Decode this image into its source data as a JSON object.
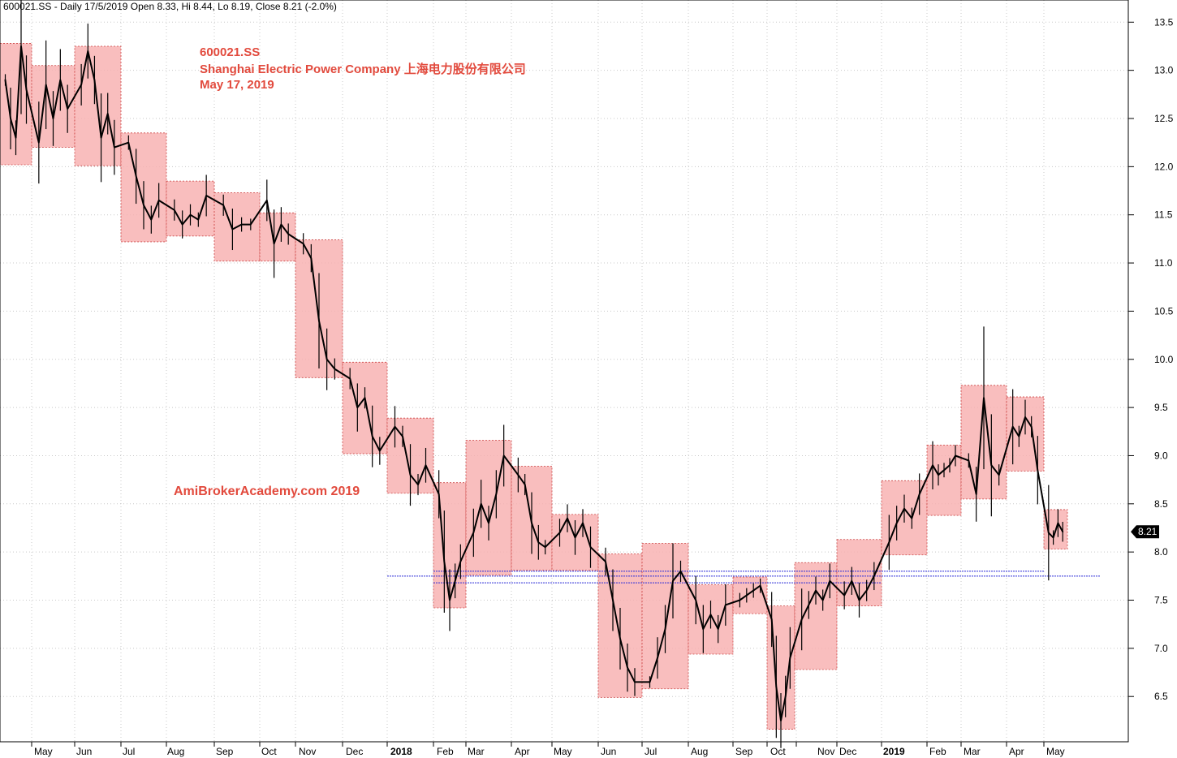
{
  "header": {
    "text": "600021.SS - Daily 17/5/2019 Open 8.33, Hi 8.44, Lo 8.19, Close 8.21 (-2.0%)"
  },
  "annotations": {
    "ticker": "600021.SS",
    "company": "Shanghai Electric Power Company  上海电力股份有限公司",
    "date": "May 17, 2019",
    "watermark": "AmiBrokerAcademy.com  2019"
  },
  "chart_data": {
    "type": "candlestick",
    "title": "600021.SS - Daily 17/5/2019 Open 8.33, Hi 8.44, Lo 8.19, Close 8.21 (-2.0%)",
    "y_axis": {
      "position": "right",
      "ylim": [
        6.03,
        13.73
      ],
      "ticks": [
        "6.5",
        "7.0",
        "7.5",
        "8.0",
        "8.5",
        "9.0",
        "9.5",
        "10.0",
        "10.5",
        "11.0",
        "11.5",
        "12.0",
        "12.5",
        "13.0",
        "13.5"
      ]
    },
    "x_axis": {
      "labels": [
        "May",
        "Jun",
        "Jul",
        "Aug",
        "Sep",
        "Oct",
        "Nov",
        "Dec",
        "2018",
        "Feb",
        "Mar",
        "Apr",
        "May",
        "Jun",
        "Jul",
        "Aug",
        "Sep",
        "Oct",
        "Nov",
        "Dec",
        "2019",
        "Feb",
        "Mar",
        "Apr",
        "May"
      ],
      "bold_labels": [
        "2018",
        "2019"
      ]
    },
    "last_close": {
      "label": "8.21",
      "value": 8.21
    },
    "monthly_ranges": [
      {
        "month": "Apr 2017",
        "low": 12.02,
        "high": 13.28
      },
      {
        "month": "May 2017",
        "low": 12.2,
        "high": 13.05
      },
      {
        "month": "Jun 2017",
        "low": 12.01,
        "high": 13.25
      },
      {
        "month": "Jul 2017",
        "low": 11.22,
        "high": 12.35
      },
      {
        "month": "Aug 2017",
        "low": 11.28,
        "high": 11.85
      },
      {
        "month": "Sep 2017",
        "low": 11.02,
        "high": 11.73
      },
      {
        "month": "Oct 2017",
        "low": 11.02,
        "high": 11.52
      },
      {
        "month": "Nov 2017",
        "low": 9.81,
        "high": 11.24
      },
      {
        "month": "Dec 2017",
        "low": 9.02,
        "high": 9.97
      },
      {
        "month": "Jan 2018",
        "low": 8.61,
        "high": 9.39
      },
      {
        "month": "Feb 2018",
        "low": 7.42,
        "high": 8.72
      },
      {
        "month": "Mar 2018",
        "low": 7.76,
        "high": 9.16
      },
      {
        "month": "Apr 2018",
        "low": 7.81,
        "high": 8.89
      },
      {
        "month": "May 2018",
        "low": 7.81,
        "high": 8.39
      },
      {
        "month": "Jun 2018",
        "low": 6.49,
        "high": 7.98
      },
      {
        "month": "Jul 2018",
        "low": 6.58,
        "high": 8.09
      },
      {
        "month": "Aug 2018",
        "low": 6.94,
        "high": 7.66
      },
      {
        "month": "Sep 2018",
        "low": 7.36,
        "high": 7.74
      },
      {
        "month": "Oct 2018",
        "low": 6.16,
        "high": 7.44
      },
      {
        "month": "Nov 2018",
        "low": 6.78,
        "high": 7.89
      },
      {
        "month": "Dec 2018",
        "low": 7.44,
        "high": 8.13
      },
      {
        "month": "Jan 2019",
        "low": 7.97,
        "high": 8.74
      },
      {
        "month": "Feb 2019",
        "low": 8.38,
        "high": 9.11
      },
      {
        "month": "Mar 2019",
        "low": 8.55,
        "high": 9.73
      },
      {
        "month": "Apr 2019",
        "low": 8.84,
        "high": 9.61
      },
      {
        "month": "May 2019",
        "low": 8.03,
        "high": 8.44
      }
    ],
    "horizontal_lines": [
      {
        "value": 7.8,
        "from": "Feb 2018",
        "to": "Apr 2019"
      },
      {
        "value": 7.75,
        "from": "Jan 2018",
        "to": "May 2019"
      },
      {
        "value": 7.68,
        "from": "Feb 2018",
        "to": "Dec 2018"
      }
    ],
    "daily_path": [
      [
        "Apr 2017",
        12.9
      ],
      [
        "Apr 2017",
        12.5
      ],
      [
        "Apr 2017",
        12.3
      ],
      [
        "Apr 2017",
        13.25
      ],
      [
        "Apr 2017",
        12.8
      ],
      [
        "May 2017",
        12.25
      ],
      [
        "May 2017",
        12.85
      ],
      [
        "May 2017",
        12.5
      ],
      [
        "May 2017",
        12.9
      ],
      [
        "May 2017",
        12.6
      ],
      [
        "Jun 2017",
        12.85
      ],
      [
        "Jun 2017",
        13.2
      ],
      [
        "Jun 2017",
        12.9
      ],
      [
        "Jun 2017",
        12.3
      ],
      [
        "Jun 2017",
        12.55
      ],
      [
        "Jun 2017",
        12.2
      ],
      [
        "Jul 2017",
        12.25
      ],
      [
        "Jul 2017",
        11.9
      ],
      [
        "Jul 2017",
        11.6
      ],
      [
        "Jul 2017",
        11.45
      ],
      [
        "Jul 2017",
        11.65
      ],
      [
        "Aug 2017",
        11.55
      ],
      [
        "Aug 2017",
        11.4
      ],
      [
        "Aug 2017",
        11.5
      ],
      [
        "Aug 2017",
        11.45
      ],
      [
        "Aug 2017",
        11.7
      ],
      [
        "Sep 2017",
        11.6
      ],
      [
        "Sep 2017",
        11.35
      ],
      [
        "Sep 2017",
        11.4
      ],
      [
        "Sep 2017",
        11.4
      ],
      [
        "Oct 2017",
        11.65
      ],
      [
        "Oct 2017",
        11.2
      ],
      [
        "Oct 2017",
        11.4
      ],
      [
        "Oct 2017",
        11.3
      ],
      [
        "Nov 2017",
        11.2
      ],
      [
        "Nov 2017",
        11.05
      ],
      [
        "Nov 2017",
        10.4
      ],
      [
        "Nov 2017",
        10.0
      ],
      [
        "Nov 2017",
        9.9
      ],
      [
        "Dec 2017",
        9.8
      ],
      [
        "Dec 2017",
        9.5
      ],
      [
        "Dec 2017",
        9.6
      ],
      [
        "Dec 2017",
        9.2
      ],
      [
        "Dec 2017",
        9.05
      ],
      [
        "Jan 2018",
        9.3
      ],
      [
        "Jan 2018",
        9.2
      ],
      [
        "Jan 2018",
        8.8
      ],
      [
        "Jan 2018",
        8.7
      ],
      [
        "Jan 2018",
        8.9
      ],
      [
        "Feb 2018",
        8.6
      ],
      [
        "Feb 2018",
        7.9
      ],
      [
        "Feb 2018",
        7.5
      ],
      [
        "Feb 2018",
        7.7
      ],
      [
        "Feb 2018",
        7.9
      ],
      [
        "Mar 2018",
        8.2
      ],
      [
        "Mar 2018",
        8.5
      ],
      [
        "Mar 2018",
        8.3
      ],
      [
        "Mar 2018",
        8.6
      ],
      [
        "Mar 2018",
        9.0
      ],
      [
        "Apr 2018",
        8.8
      ],
      [
        "Apr 2018",
        8.7
      ],
      [
        "Apr 2018",
        8.3
      ],
      [
        "Apr 2018",
        8.1
      ],
      [
        "Apr 2018",
        8.05
      ],
      [
        "May 2018",
        8.2
      ],
      [
        "May 2018",
        8.35
      ],
      [
        "May 2018",
        8.15
      ],
      [
        "May 2018",
        8.3
      ],
      [
        "May 2018",
        8.05
      ],
      [
        "Jun 2018",
        7.9
      ],
      [
        "Jun 2018",
        7.5
      ],
      [
        "Jun 2018",
        7.1
      ],
      [
        "Jun 2018",
        6.8
      ],
      [
        "Jun 2018",
        6.65
      ],
      [
        "Jul 2018",
        6.65
      ],
      [
        "Jul 2018",
        6.9
      ],
      [
        "Jul 2018",
        7.2
      ],
      [
        "Jul 2018",
        7.7
      ],
      [
        "Jul 2018",
        7.8
      ],
      [
        "Aug 2018",
        7.5
      ],
      [
        "Aug 2018",
        7.2
      ],
      [
        "Aug 2018",
        7.35
      ],
      [
        "Aug 2018",
        7.2
      ],
      [
        "Aug 2018",
        7.45
      ],
      [
        "Sep 2018",
        7.5
      ],
      [
        "Sep 2018",
        7.55
      ],
      [
        "Sep 2018",
        7.6
      ],
      [
        "Sep 2018",
        7.65
      ],
      [
        "Oct 2018",
        7.3
      ],
      [
        "Oct 2018",
        6.6
      ],
      [
        "Oct 2018",
        6.25
      ],
      [
        "Oct 2018",
        6.5
      ],
      [
        "Oct 2018",
        6.9
      ],
      [
        "Nov 2018",
        7.3
      ],
      [
        "Nov 2018",
        7.45
      ],
      [
        "Nov 2018",
        7.6
      ],
      [
        "Nov 2018",
        7.5
      ],
      [
        "Nov 2018",
        7.7
      ],
      [
        "Dec 2018",
        7.55
      ],
      [
        "Dec 2018",
        7.7
      ],
      [
        "Dec 2018",
        7.5
      ],
      [
        "Dec 2018",
        7.6
      ],
      [
        "Dec 2018",
        7.75
      ],
      [
        "Jan 2019",
        8.1
      ],
      [
        "Jan 2019",
        8.3
      ],
      [
        "Jan 2019",
        8.45
      ],
      [
        "Jan 2019",
        8.35
      ],
      [
        "Jan 2019",
        8.6
      ],
      [
        "Feb 2019",
        8.9
      ],
      [
        "Feb 2019",
        8.8
      ],
      [
        "Feb 2019",
        8.85
      ],
      [
        "Feb 2019",
        8.9
      ],
      [
        "Feb 2019",
        9.0
      ],
      [
        "Mar 2019",
        8.95
      ],
      [
        "Mar 2019",
        8.6
      ],
      [
        "Mar 2019",
        9.6
      ],
      [
        "Mar 2019",
        8.9
      ],
      [
        "Mar 2019",
        8.8
      ],
      [
        "Apr 2019",
        9.3
      ],
      [
        "Apr 2019",
        9.2
      ],
      [
        "Apr 2019",
        9.4
      ],
      [
        "Apr 2019",
        9.3
      ],
      [
        "Apr 2019",
        8.85
      ],
      [
        "May 2019",
        8.2
      ],
      [
        "May 2019",
        8.15
      ],
      [
        "May 2019",
        8.3
      ],
      [
        "May 2019",
        8.21
      ]
    ]
  }
}
